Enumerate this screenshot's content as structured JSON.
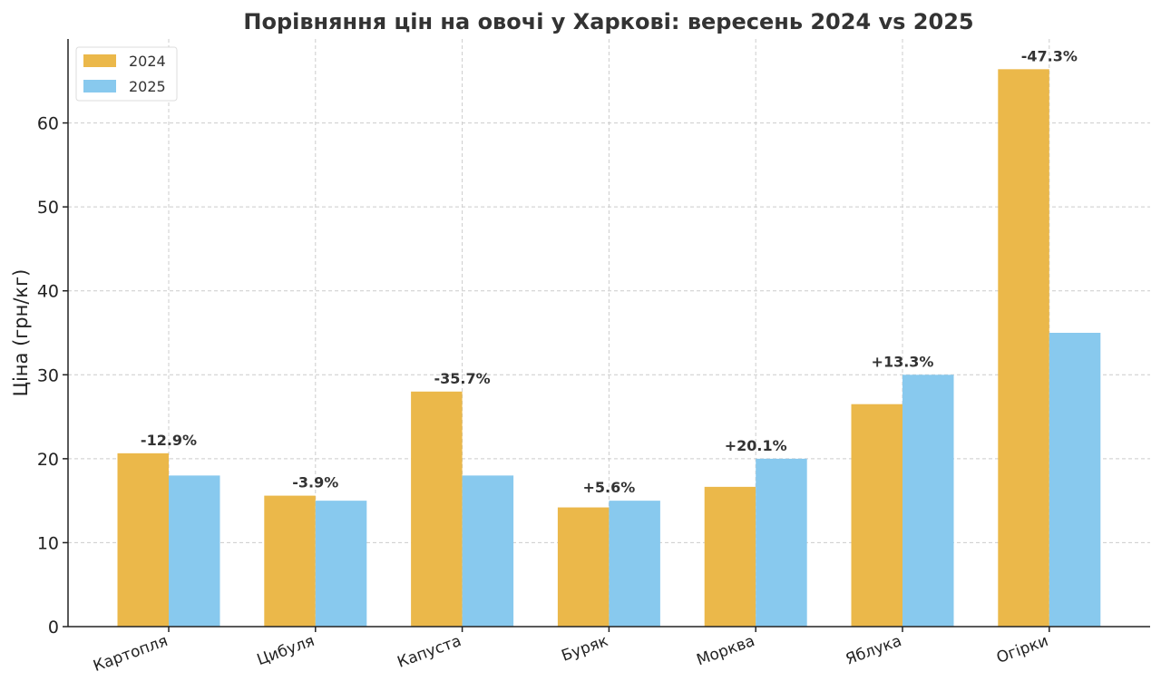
{
  "chart_data": {
    "type": "bar",
    "title": "Порівняння цін на овочі у Харкові: вересень 2024 vs 2025",
    "xlabel": "",
    "ylabel": "Ціна (грн/кг)",
    "ylim": [
      0,
      70
    ],
    "yticks": [
      0,
      10,
      20,
      30,
      40,
      50,
      60
    ],
    "grid": true,
    "legend_position": "top-left",
    "categories": [
      "Картопля",
      "Цибуля",
      "Капуста",
      "Буряк",
      "Морква",
      "Яблука",
      "Огірки"
    ],
    "series": [
      {
        "name": "2024",
        "color": "#EBB84A",
        "values": [
          20.65,
          15.6,
          28.0,
          14.2,
          16.65,
          26.5,
          66.4
        ]
      },
      {
        "name": "2025",
        "color": "#88C9EE",
        "values": [
          18.0,
          15.0,
          18.0,
          15.0,
          20.0,
          30.0,
          35.0
        ]
      }
    ],
    "annotations": [
      "-12.9%",
      "-3.9%",
      "-35.7%",
      "+5.6%",
      "+20.1%",
      "+13.3%",
      "-47.3%"
    ]
  }
}
